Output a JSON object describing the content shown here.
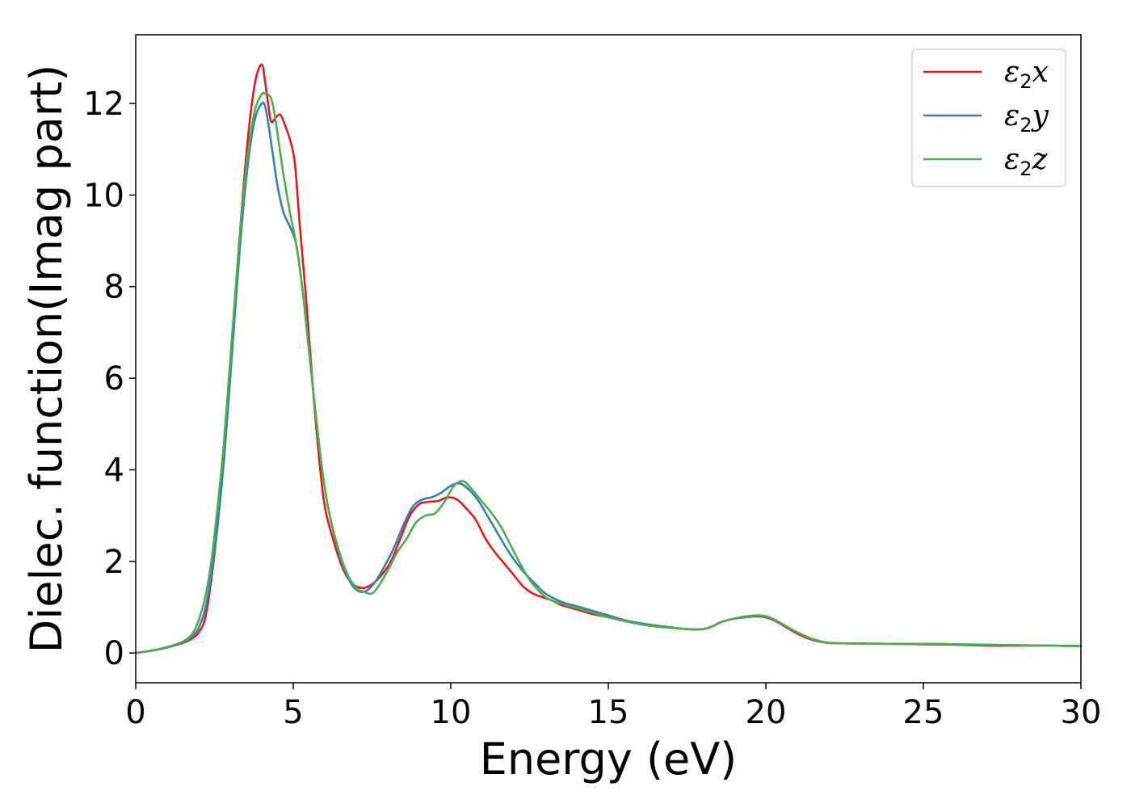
{
  "chart_data": {
    "type": "line",
    "title": "",
    "xlabel": "Energy (eV)",
    "ylabel": "Dielec. function(Imag part)",
    "xlim": [
      0,
      30
    ],
    "ylim": [
      -0.65,
      13.5
    ],
    "xticks": [
      "0",
      "5",
      "10",
      "15",
      "20",
      "25",
      "30"
    ],
    "yticks": [
      "0",
      "2",
      "4",
      "6",
      "8",
      "10",
      "12"
    ],
    "grid": false,
    "legend_position": "top-right",
    "series": [
      {
        "name": "ε2x",
        "label_main": "ε",
        "label_sub": "2",
        "label_tail": "x",
        "color": "#e41a1c",
        "x": [
          0,
          0.5,
          1.0,
          1.5,
          1.8,
          2.0,
          2.2,
          2.4,
          2.6,
          2.8,
          3.0,
          3.2,
          3.4,
          3.6,
          3.8,
          4.0,
          4.1,
          4.2,
          4.3,
          4.45,
          4.6,
          4.75,
          4.9,
          5.05,
          5.2,
          5.4,
          5.6,
          5.8,
          6.0,
          6.3,
          6.6,
          6.9,
          7.2,
          7.5,
          7.8,
          8.1,
          8.4,
          8.7,
          9.0,
          9.3,
          9.6,
          9.9,
          10.2,
          10.5,
          10.8,
          11.1,
          11.4,
          11.7,
          12.0,
          12.3,
          12.6,
          12.9,
          13.2,
          13.5,
          14.0,
          14.5,
          15.0,
          15.5,
          16.0,
          16.5,
          17.0,
          17.5,
          18.0,
          18.3,
          18.6,
          19.0,
          19.4,
          19.7,
          20.0,
          20.3,
          20.6,
          21.0,
          21.5,
          22.0,
          22.5,
          23.0,
          24.0,
          25.0,
          26.0,
          27.0,
          28.0,
          29.0,
          30.0
        ],
        "values": [
          0,
          0.05,
          0.12,
          0.22,
          0.32,
          0.45,
          0.75,
          1.6,
          2.8,
          4.3,
          6.2,
          8.2,
          10.0,
          11.5,
          12.5,
          12.85,
          12.5,
          12.0,
          11.6,
          11.7,
          11.75,
          11.5,
          11.2,
          10.7,
          9.4,
          7.8,
          6.0,
          4.4,
          3.2,
          2.4,
          1.8,
          1.5,
          1.42,
          1.5,
          1.7,
          2.0,
          2.5,
          3.0,
          3.25,
          3.3,
          3.32,
          3.4,
          3.35,
          3.15,
          2.9,
          2.5,
          2.2,
          1.95,
          1.7,
          1.45,
          1.3,
          1.22,
          1.15,
          1.05,
          0.95,
          0.85,
          0.78,
          0.7,
          0.63,
          0.58,
          0.55,
          0.52,
          0.52,
          0.58,
          0.68,
          0.75,
          0.78,
          0.8,
          0.78,
          0.7,
          0.58,
          0.42,
          0.28,
          0.22,
          0.21,
          0.2,
          0.2,
          0.19,
          0.18,
          0.16,
          0.16,
          0.16,
          0.15
        ]
      },
      {
        "name": "ε2y",
        "label_main": "ε",
        "label_sub": "2",
        "label_tail": "y",
        "color": "#377eb8",
        "x": [
          0,
          0.5,
          1.0,
          1.5,
          1.8,
          2.0,
          2.2,
          2.4,
          2.6,
          2.8,
          3.0,
          3.2,
          3.4,
          3.6,
          3.8,
          4.0,
          4.1,
          4.2,
          4.35,
          4.5,
          4.7,
          4.9,
          5.1,
          5.3,
          5.5,
          5.7,
          5.9,
          6.1,
          6.4,
          6.7,
          7.0,
          7.3,
          7.6,
          7.9,
          8.2,
          8.5,
          8.8,
          9.1,
          9.4,
          9.7,
          10.0,
          10.3,
          10.6,
          10.9,
          11.2,
          11.5,
          11.8,
          12.1,
          12.4,
          12.7,
          13.0,
          13.5,
          14.0,
          14.5,
          15.0,
          15.5,
          16.0,
          16.5,
          17.0,
          17.5,
          18.0,
          18.3,
          18.6,
          19.0,
          19.4,
          19.7,
          20.0,
          20.3,
          20.6,
          21.0,
          21.5,
          22.0,
          22.5,
          23.0,
          24.0,
          25.0,
          26.0,
          27.0,
          28.0,
          29.0,
          30.0
        ],
        "values": [
          0,
          0.05,
          0.12,
          0.24,
          0.36,
          0.55,
          0.95,
          1.7,
          2.8,
          4.2,
          6.0,
          7.9,
          9.6,
          10.9,
          11.7,
          12.0,
          11.95,
          11.6,
          10.9,
          10.2,
          9.6,
          9.3,
          8.9,
          7.9,
          6.6,
          5.3,
          4.1,
          3.2,
          2.3,
          1.7,
          1.38,
          1.35,
          1.55,
          1.9,
          2.3,
          2.8,
          3.2,
          3.35,
          3.4,
          3.5,
          3.65,
          3.7,
          3.55,
          3.3,
          2.95,
          2.6,
          2.25,
          1.95,
          1.7,
          1.5,
          1.3,
          1.12,
          1.02,
          0.92,
          0.82,
          0.72,
          0.65,
          0.6,
          0.56,
          0.52,
          0.52,
          0.58,
          0.68,
          0.75,
          0.8,
          0.82,
          0.8,
          0.72,
          0.6,
          0.45,
          0.3,
          0.22,
          0.21,
          0.21,
          0.2,
          0.2,
          0.19,
          0.18,
          0.17,
          0.16,
          0.15
        ]
      },
      {
        "name": "ε2z",
        "label_main": "ε",
        "label_sub": "2",
        "label_tail": "z",
        "color": "#4daf4a",
        "x": [
          0,
          0.5,
          1.0,
          1.5,
          1.8,
          2.0,
          2.2,
          2.4,
          2.6,
          2.8,
          3.0,
          3.2,
          3.4,
          3.6,
          3.8,
          4.0,
          4.1,
          4.2,
          4.3,
          4.4,
          4.55,
          4.7,
          4.9,
          5.1,
          5.3,
          5.5,
          5.7,
          5.9,
          6.1,
          6.4,
          6.7,
          7.0,
          7.3,
          7.5,
          7.7,
          8.0,
          8.3,
          8.6,
          8.9,
          9.2,
          9.5,
          9.8,
          10.1,
          10.4,
          10.7,
          11.0,
          11.3,
          11.6,
          11.9,
          12.2,
          12.5,
          12.8,
          13.1,
          13.5,
          14.0,
          14.5,
          15.0,
          15.5,
          16.0,
          16.5,
          17.0,
          17.5,
          18.0,
          18.3,
          18.6,
          19.0,
          19.4,
          19.7,
          20.0,
          20.3,
          20.6,
          21.0,
          21.5,
          22.0,
          22.5,
          23.0,
          24.0,
          25.0,
          26.0,
          27.0,
          28.0,
          29.0,
          30.0
        ],
        "values": [
          0,
          0.05,
          0.13,
          0.25,
          0.42,
          0.72,
          1.2,
          2.0,
          3.2,
          4.6,
          6.4,
          8.2,
          9.9,
          11.1,
          11.9,
          12.2,
          12.22,
          12.2,
          12.1,
          11.8,
          11.1,
          10.4,
          9.6,
          8.9,
          7.9,
          6.6,
          5.3,
          4.1,
          3.2,
          2.35,
          1.75,
          1.42,
          1.32,
          1.3,
          1.45,
          1.8,
          2.2,
          2.5,
          2.85,
          3.0,
          3.05,
          3.3,
          3.65,
          3.75,
          3.55,
          3.3,
          3.05,
          2.75,
          2.35,
          1.95,
          1.6,
          1.35,
          1.18,
          1.08,
          0.98,
          0.88,
          0.78,
          0.7,
          0.63,
          0.58,
          0.55,
          0.52,
          0.52,
          0.58,
          0.68,
          0.75,
          0.78,
          0.82,
          0.8,
          0.72,
          0.6,
          0.45,
          0.3,
          0.22,
          0.21,
          0.2,
          0.2,
          0.2,
          0.19,
          0.18,
          0.17,
          0.16,
          0.15
        ]
      }
    ]
  }
}
